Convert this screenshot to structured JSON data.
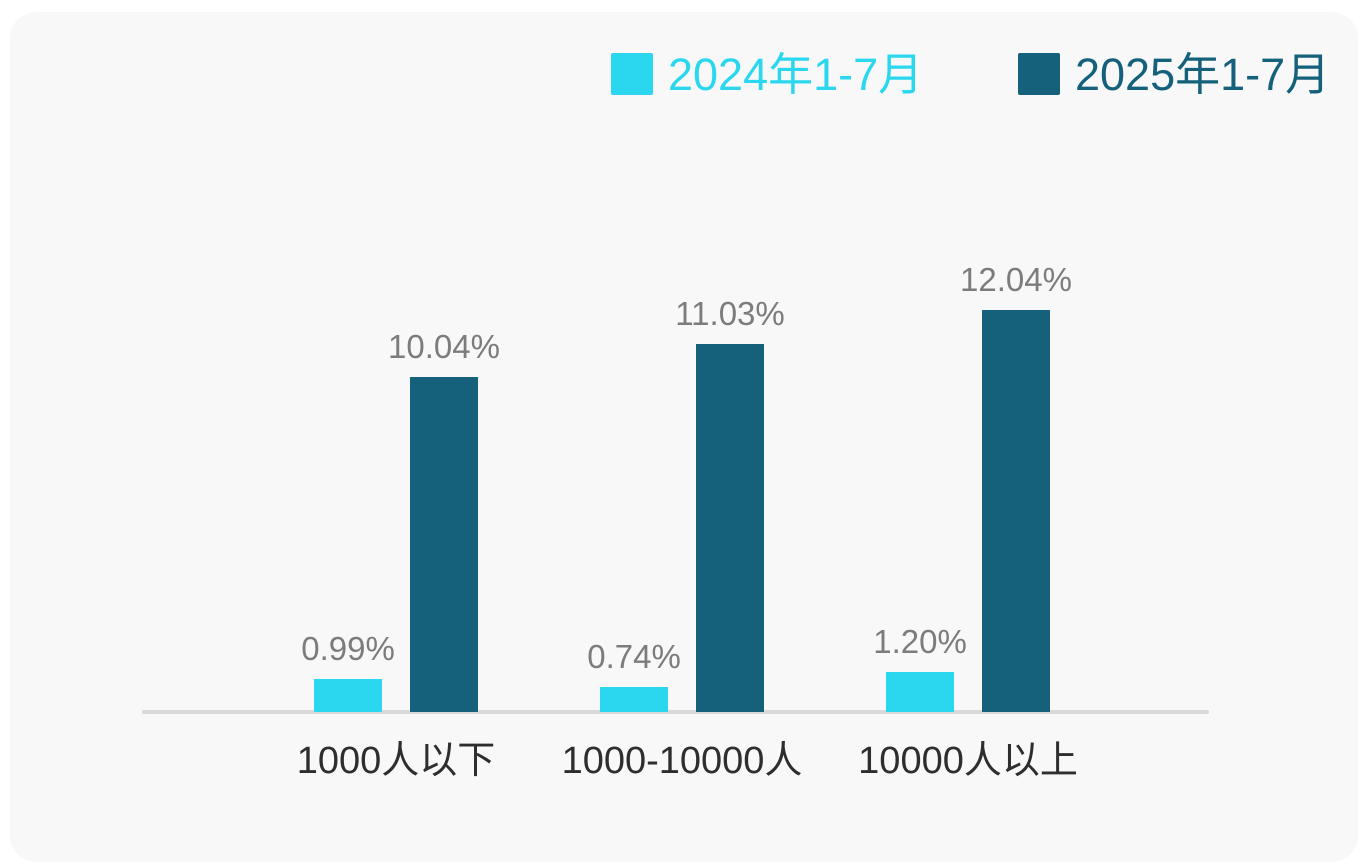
{
  "page": {
    "background": "#ffffff"
  },
  "card": {
    "background": "#f8f8f9"
  },
  "chart_data": {
    "type": "bar",
    "title": "",
    "categories": [
      "1000人以下",
      "1000-10000人",
      "10000人以上"
    ],
    "series": [
      {
        "name": "2024年1-7月",
        "color": "#2bd7ee",
        "values": [
          0.99,
          0.74,
          1.2
        ],
        "value_labels": [
          "0.99%",
          "0.74%",
          "1.20%"
        ]
      },
      {
        "name": "2025年1-7月",
        "color": "#15607b",
        "values": [
          10.04,
          11.03,
          12.04
        ],
        "value_labels": [
          "10.04%",
          "11.03%",
          "12.04%"
        ]
      }
    ],
    "xlabel": "",
    "ylabel": "",
    "ylim": [
      0,
      12.04
    ],
    "grid": false,
    "y_axis_visible": false,
    "legend_position": "top-right",
    "axis_line_color": "#d9d9d9",
    "value_label_color": "#7c7c7c",
    "category_label_color": "#2e2e2e"
  }
}
